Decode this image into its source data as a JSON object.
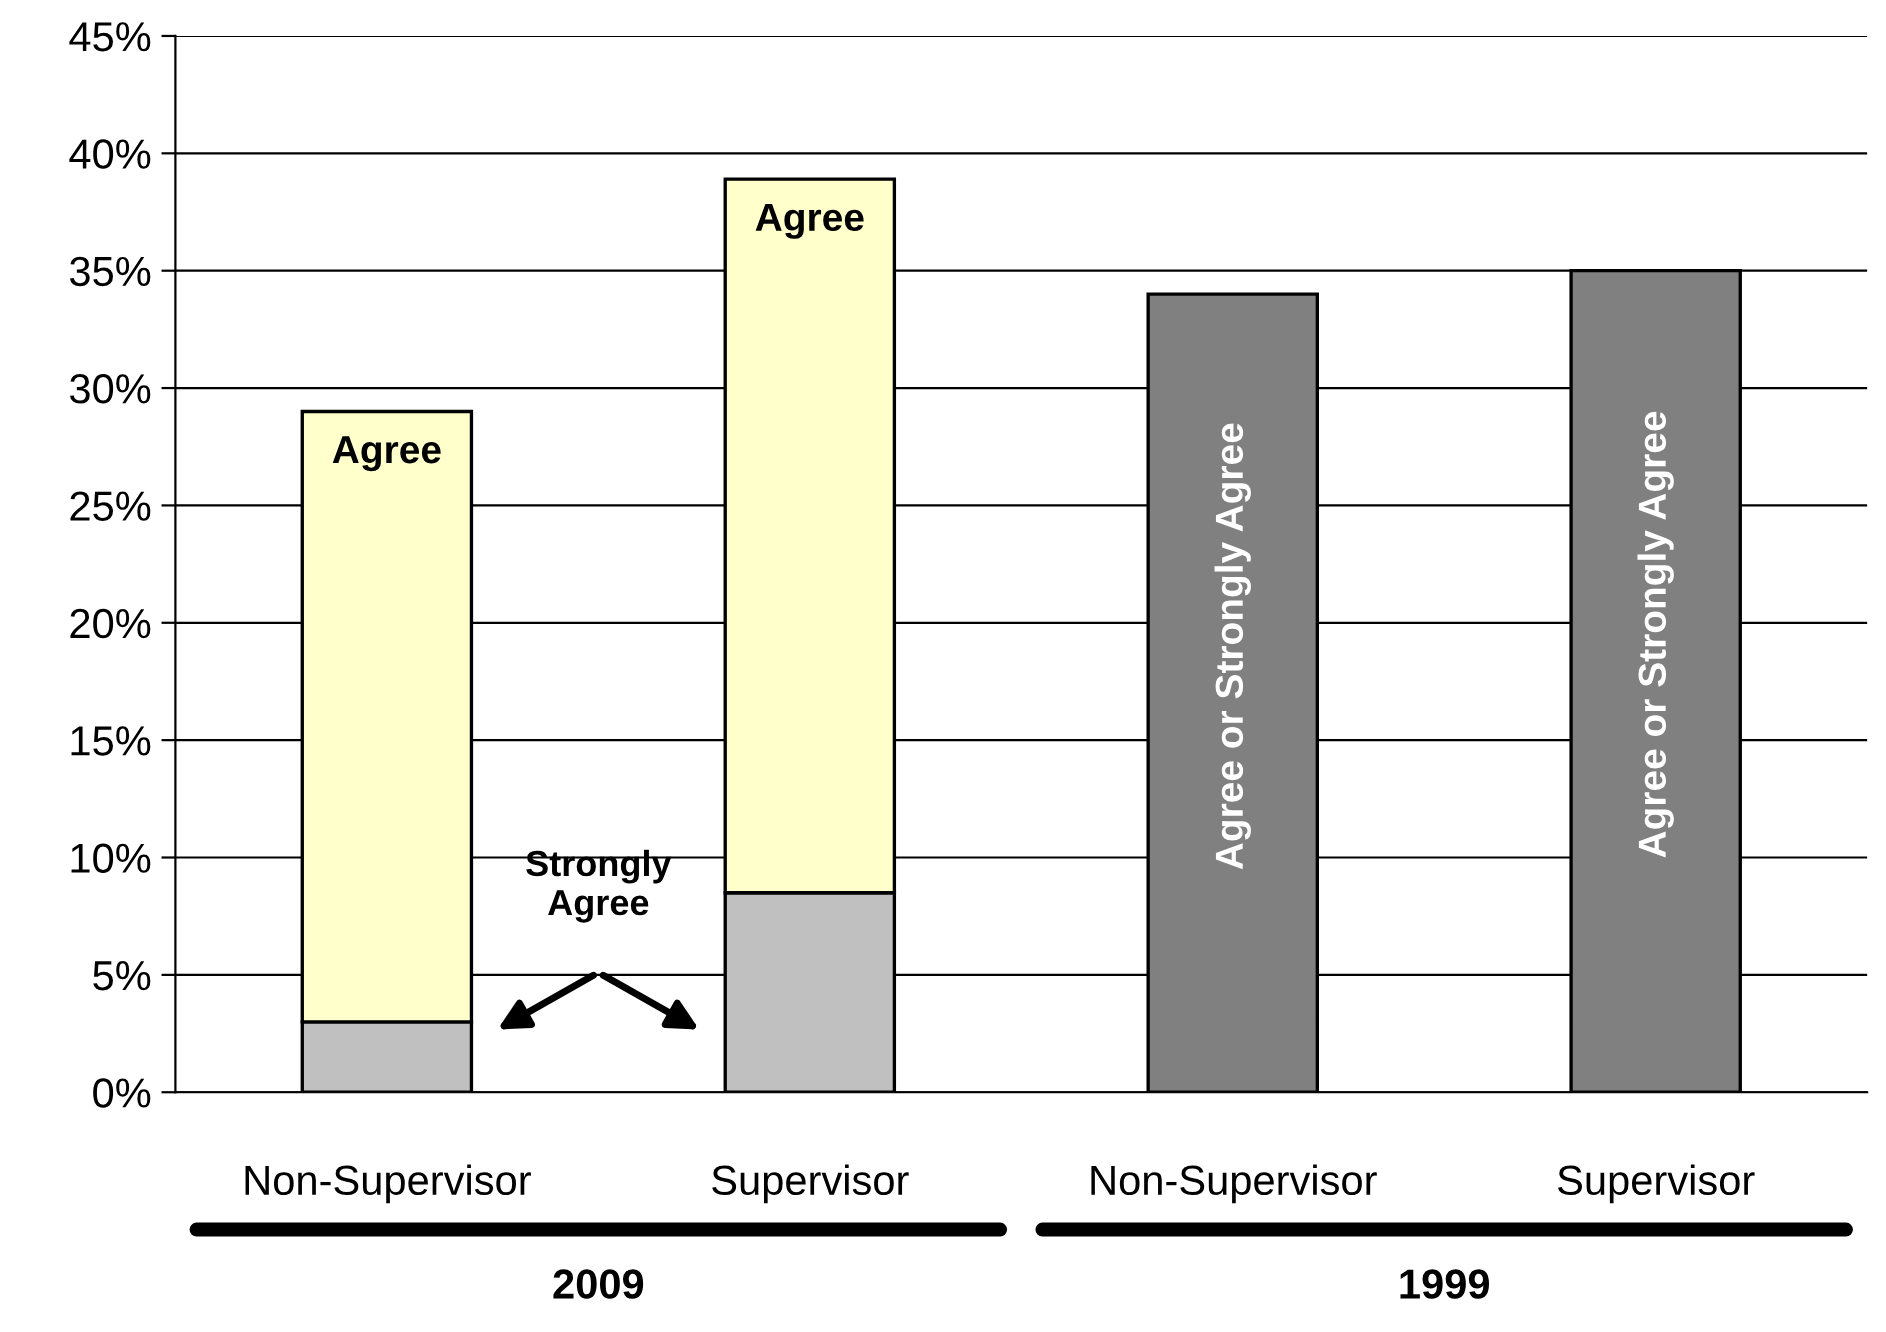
{
  "chart_data": {
    "type": "bar",
    "stacked": true,
    "categories": [
      "Non-Supervisor",
      "Supervisor",
      "Non-Supervisor",
      "Supervisor"
    ],
    "series": [
      {
        "name": "Strongly Agree",
        "color": "#c0c0c0",
        "values": [
          3,
          8.5,
          null,
          null
        ]
      },
      {
        "name": "Agree",
        "color": "#ffffcc",
        "values": [
          26,
          30.4,
          null,
          null
        ]
      },
      {
        "name": "Agree or Strongly Agree",
        "color": "#808080",
        "values": [
          null,
          null,
          34,
          35
        ]
      }
    ],
    "ylim": [
      0,
      45
    ],
    "yticks": [
      {
        "value": 0,
        "label": "0%"
      },
      {
        "value": 5,
        "label": "5%"
      },
      {
        "value": 10,
        "label": "10%"
      },
      {
        "value": 15,
        "label": "15%"
      },
      {
        "value": 20,
        "label": "20%"
      },
      {
        "value": 25,
        "label": "25%"
      },
      {
        "value": 30,
        "label": "30%"
      },
      {
        "value": 35,
        "label": "35%"
      },
      {
        "value": 40,
        "label": "40%"
      },
      {
        "value": 45,
        "label": "45%"
      }
    ],
    "grid": "y",
    "annotations": [
      "2009",
      "1999"
    ]
  }
}
